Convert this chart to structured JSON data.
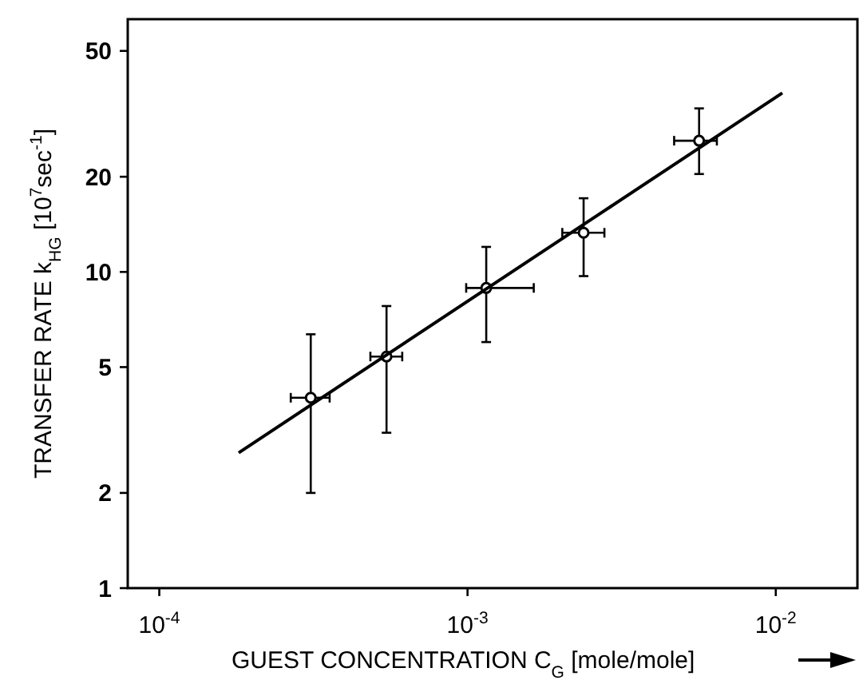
{
  "chart_data": {
    "type": "scatter",
    "xlabel": "GUEST CONCENTRATION C$_{G}$ [mole/mole]",
    "ylabel": "TRANSFER RATE k$_{HG}$ [10$^{7}$sec$^{-1}$]",
    "log": "xy",
    "grid": false,
    "xlim": [
      7.9e-05,
      0.0184
    ],
    "ylim": [
      1,
      63
    ],
    "xticks": [
      {
        "value": 0.0001,
        "label": "10$^{-4}$"
      },
      {
        "value": 0.001,
        "label": "10$^{-3}$"
      },
      {
        "value": 0.01,
        "label": "10$^{-2}$"
      }
    ],
    "yticks": [
      1,
      2,
      5,
      10,
      20,
      50
    ],
    "series": [
      {
        "color": "#000000",
        "marker": "circle",
        "x": [
          0.00031,
          0.000546,
          0.00115,
          0.00238,
          0.00564
        ],
        "values": [
          4.0,
          5.4,
          8.9,
          13.3,
          26
        ],
        "errors": [
          [
            2.0,
            6.35
          ],
          [
            3.1,
            7.8
          ],
          [
            6.0,
            12.0
          ],
          [
            9.7,
            17.1
          ],
          [
            20.4,
            32.9
          ]
        ],
        "xerrors": [
          [
            0.000267,
            0.000357
          ],
          [
            0.000484,
            0.000614
          ],
          [
            0.00099,
            0.00164
          ],
          [
            0.00203,
            0.00278
          ],
          [
            0.00468,
            0.00644
          ]
        ]
      },
      {
        "type": "line",
        "color": "#000000",
        "marker": "none",
        "line_style": "solid",
        "x": [
          0.000181,
          0.0105
        ],
        "values": [
          2.68,
          36.8
        ]
      }
    ]
  }
}
